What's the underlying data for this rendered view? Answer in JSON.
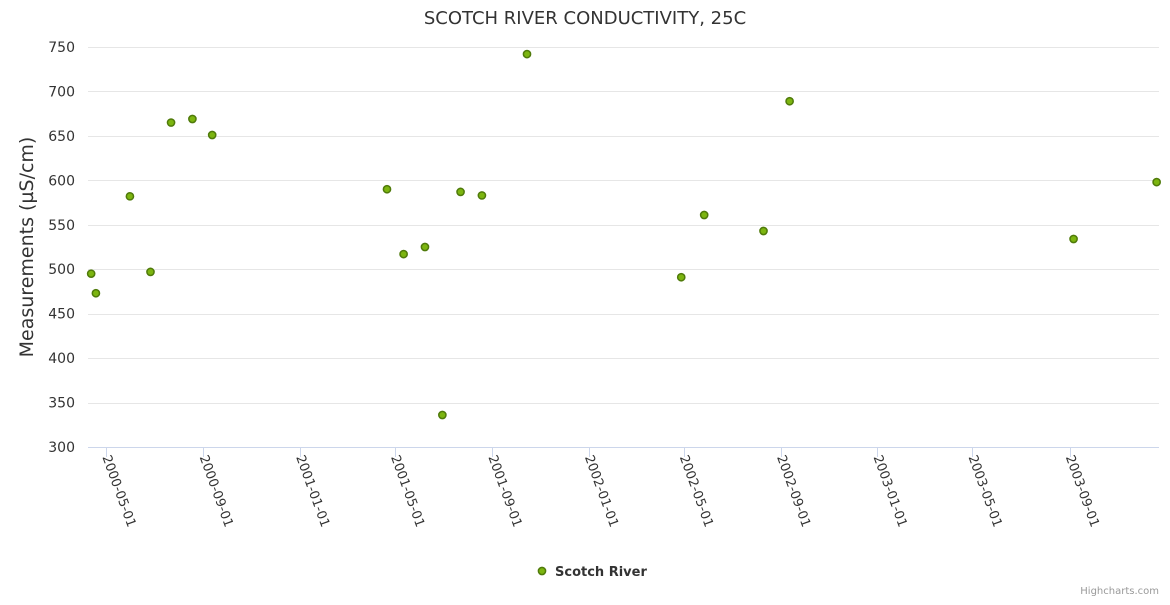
{
  "chart_data": {
    "type": "scatter",
    "title": "SCOTCH RIVER CONDUCTIVITY, 25C",
    "xlabel": "",
    "ylabel": "Measurements (µS/cm)",
    "ylim": [
      300,
      750
    ],
    "yticks": [
      300,
      350,
      400,
      450,
      500,
      550,
      600,
      650,
      700,
      750
    ],
    "xlim": [
      "2000-04-08",
      "2003-12-23"
    ],
    "xticks": [
      "2000-05-01",
      "2000-09-01",
      "2001-01-01",
      "2001-05-01",
      "2001-09-01",
      "2002-01-01",
      "2002-05-01",
      "2002-09-01",
      "2003-01-01",
      "2003-05-01",
      "2003-09-01"
    ],
    "grid": true,
    "legend_position": "bottom-center",
    "series": [
      {
        "name": "Scotch River",
        "color": "#7cb510",
        "points": [
          {
            "x": "2000-04-12",
            "y": 495
          },
          {
            "x": "2000-04-18",
            "y": 473
          },
          {
            "x": "2000-05-31",
            "y": 582
          },
          {
            "x": "2000-06-26",
            "y": 497
          },
          {
            "x": "2000-07-22",
            "y": 665
          },
          {
            "x": "2000-08-18",
            "y": 669
          },
          {
            "x": "2000-09-12",
            "y": 651
          },
          {
            "x": "2001-04-21",
            "y": 590
          },
          {
            "x": "2001-05-12",
            "y": 517
          },
          {
            "x": "2001-06-08",
            "y": 525
          },
          {
            "x": "2001-06-30",
            "y": 336
          },
          {
            "x": "2001-07-23",
            "y": 587
          },
          {
            "x": "2001-08-19",
            "y": 583
          },
          {
            "x": "2001-10-15",
            "y": 742
          },
          {
            "x": "2002-04-28",
            "y": 491
          },
          {
            "x": "2002-05-27",
            "y": 561
          },
          {
            "x": "2002-08-10",
            "y": 543
          },
          {
            "x": "2002-09-12",
            "y": 689
          },
          {
            "x": "2003-09-06",
            "y": 534
          },
          {
            "x": "2003-12-20",
            "y": 598
          }
        ]
      }
    ]
  },
  "credits": "Highcharts.com"
}
